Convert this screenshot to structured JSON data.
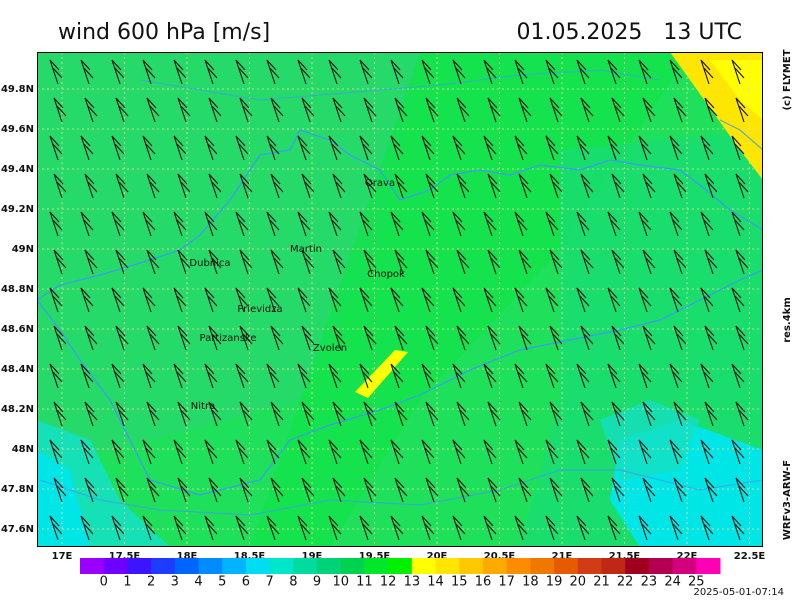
{
  "header": {
    "title": "wind 600 hPa [m/s]",
    "datetime": "01.05.2025   13 UTC"
  },
  "side_labels": {
    "copyright": "(c) FLYMET",
    "resolution": "res.4km",
    "model": "WRFv3-ARW-F"
  },
  "map": {
    "lat_labels": [
      "49.8N",
      "49.6N",
      "49.4N",
      "49.2N",
      "49N",
      "48.8N",
      "48.6N",
      "48.4N",
      "48.2N",
      "48N",
      "47.8N",
      "47.6N"
    ],
    "lon_labels": [
      "17E",
      "17.5E",
      "18E",
      "18.5E",
      "19E",
      "19.5E",
      "20E",
      "20.5E",
      "21E",
      "21.5E",
      "22E",
      "22.5E"
    ],
    "places": [
      "Orava",
      "Martin",
      "Dubnica",
      "Chopok",
      "Prievidza",
      "Partizanske",
      "Zvolen",
      "Nitra"
    ]
  },
  "colorbar": {
    "labels": [
      0,
      1,
      2,
      3,
      4,
      5,
      6,
      7,
      8,
      9,
      10,
      11,
      12,
      13,
      14,
      15,
      16,
      17,
      18,
      19,
      20,
      21,
      22,
      23,
      24,
      25
    ],
    "colors": [
      "#9a00ff",
      "#6e00ff",
      "#3c14ff",
      "#1e3cff",
      "#0064ff",
      "#008cff",
      "#00b4ff",
      "#00dcf0",
      "#00e6c8",
      "#00dca0",
      "#00d278",
      "#00d250",
      "#00e628",
      "#00f000",
      "#ffff00",
      "#ffe600",
      "#ffc800",
      "#ffaa00",
      "#ff8c00",
      "#f07800",
      "#e65a00",
      "#d23c14",
      "#be2814",
      "#a0001e",
      "#b40050",
      "#d2007d",
      "#ff00b4"
    ]
  },
  "timestamp": "2025-05-01-07:14"
}
